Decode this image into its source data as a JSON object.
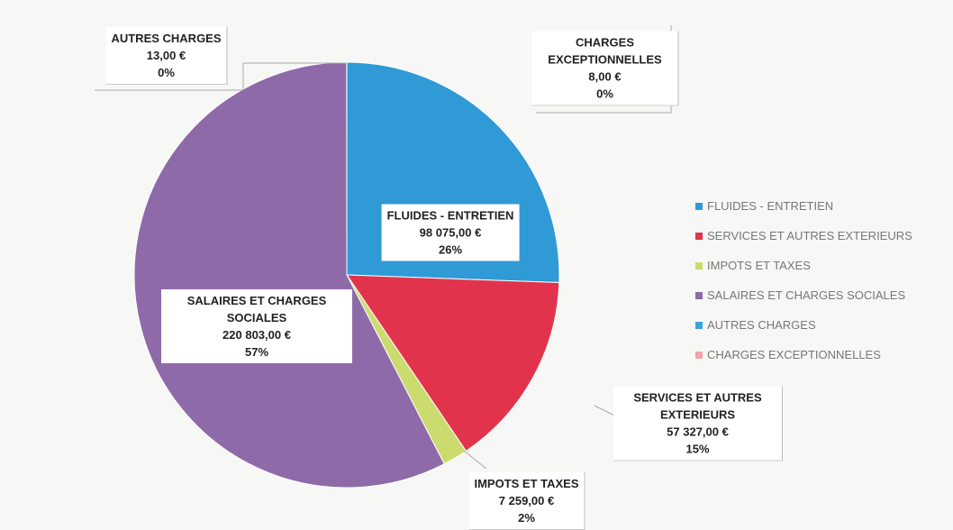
{
  "chart_data": {
    "type": "pie",
    "categories": [
      "FLUIDES - ENTRETIEN",
      "SERVICES ET AUTRES EXTERIEURS",
      "IMPOTS ET TAXES",
      "SALAIRES ET CHARGES SOCIALES",
      "AUTRES CHARGES",
      "CHARGES EXCEPTIONNELLES"
    ],
    "values": [
      98075,
      57327,
      7259,
      220803,
      13,
      8
    ],
    "value_labels": [
      "98 075,00 €",
      "57 327,00 €",
      "7 259,00 €",
      "220 803,00 €",
      "13,00 €",
      "8,00 €"
    ],
    "percents": [
      26,
      15,
      2,
      57,
      0,
      0
    ],
    "percent_labels": [
      "26%",
      "15%",
      "2%",
      "57%",
      "0%",
      "0%"
    ],
    "colors": [
      "#2f9ad6",
      "#e1344c",
      "#cbdb6e",
      "#8f6aa9",
      "#3ba3da",
      "#f2a3aa"
    ],
    "legend": "right"
  }
}
